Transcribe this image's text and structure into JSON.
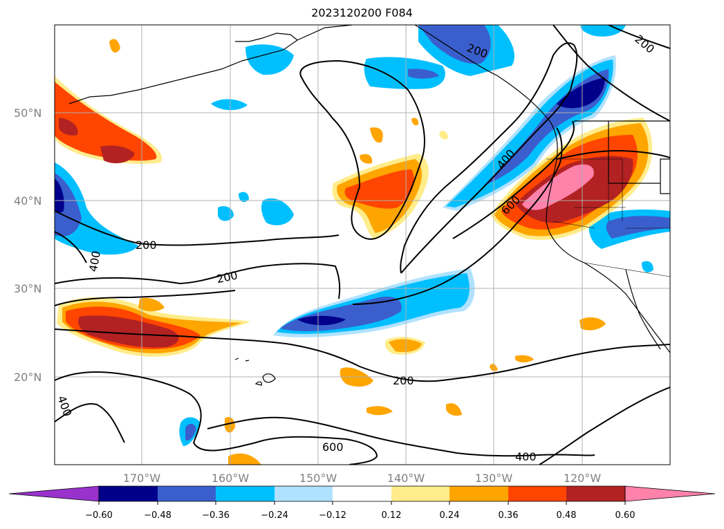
{
  "title": "2023120200 F084",
  "map": {
    "lat_labels": [
      "50°N",
      "40°N",
      "30°N",
      "20°N"
    ],
    "lon_labels": [
      "170°W",
      "160°W",
      "150°W",
      "140°W",
      "130°W",
      "120°W"
    ],
    "contour_labels": [
      "200",
      "200",
      "200",
      "200",
      "400",
      "400",
      "400",
      "400",
      "600",
      "600",
      "200"
    ]
  },
  "colorbar": {
    "ticks": [
      "−0.60",
      "−0.48",
      "−0.36",
      "−0.24",
      "−0.12",
      "0.12",
      "0.24",
      "0.36",
      "0.48",
      "0.60"
    ],
    "colors": [
      "#9932cc",
      "#00008b",
      "#3a5fcd",
      "#00bfff",
      "#b0e2ff",
      "#ffffff",
      "#ffec8b",
      "#ffa500",
      "#ff4500",
      "#b22222",
      "#ff82ab"
    ]
  }
}
